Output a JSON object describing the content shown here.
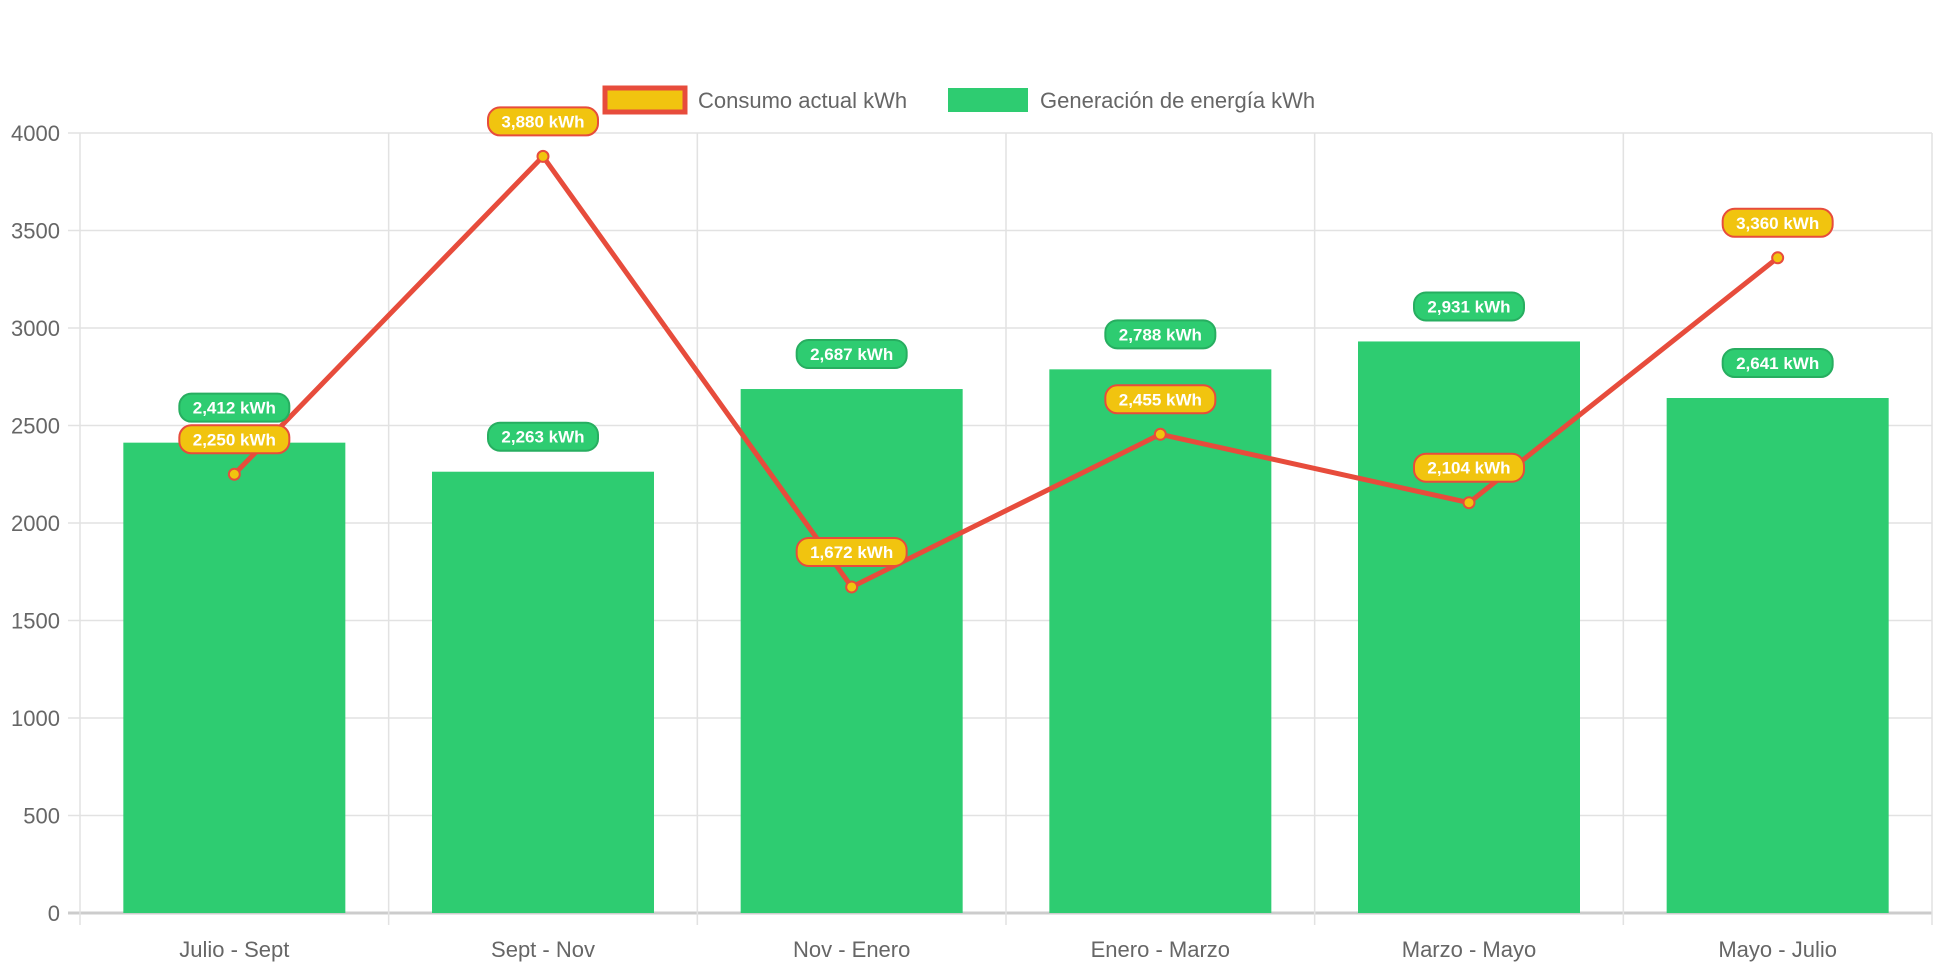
{
  "chart_data": {
    "type": "bar",
    "categories": [
      "Julio - Sept",
      "Sept - Nov",
      "Nov - Enero",
      "Enero - Marzo",
      "Marzo - Mayo",
      "Mayo - Julio"
    ],
    "series": [
      {
        "name": "Consumo actual kWh",
        "type": "line",
        "values": [
          2250,
          3880,
          1672,
          2455,
          2104,
          3360
        ],
        "labels": [
          "2,250 kWh",
          "3,880 kWh",
          "1,672 kWh",
          "2,455 kWh",
          "2,104 kWh",
          "3,360 kWh"
        ],
        "color": "#e74c3c",
        "fill": "#f1c40f"
      },
      {
        "name": "Generación de energía kWh",
        "type": "bar",
        "values": [
          2412,
          2263,
          2687,
          2788,
          2931,
          2641
        ],
        "labels": [
          "2,412 kWh",
          "2,263 kWh",
          "2,687 kWh",
          "2,788 kWh",
          "2,931 kWh",
          "2,641 kWh"
        ],
        "color": "#2ecc71",
        "border": "#27ae60"
      }
    ],
    "yticks": [
      "0",
      "500",
      "1000",
      "1500",
      "2000",
      "2500",
      "3000",
      "3500",
      "4000"
    ],
    "ylim": [
      0,
      4000
    ],
    "grid": true,
    "legend_position": "top"
  }
}
